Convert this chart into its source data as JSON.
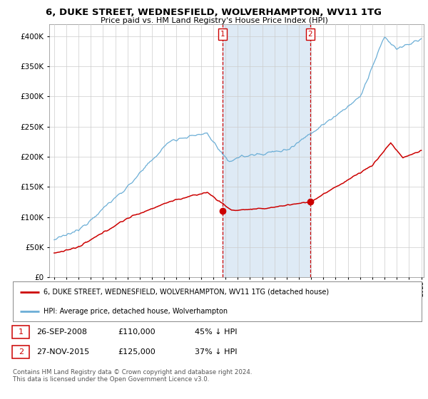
{
  "title": "6, DUKE STREET, WEDNESFIELD, WOLVERHAMPTON, WV11 1TG",
  "subtitle": "Price paid vs. HM Land Registry's House Price Index (HPI)",
  "legend_line1": "6, DUKE STREET, WEDNESFIELD, WOLVERHAMPTON, WV11 1TG (detached house)",
  "legend_line2": "HPI: Average price, detached house, Wolverhampton",
  "annotation1_label": "1",
  "annotation1_date": "26-SEP-2008",
  "annotation1_price": "£110,000",
  "annotation1_pct": "45% ↓ HPI",
  "annotation2_label": "2",
  "annotation2_date": "27-NOV-2015",
  "annotation2_price": "£125,000",
  "annotation2_pct": "37% ↓ HPI",
  "footnote": "Contains HM Land Registry data © Crown copyright and database right 2024.\nThis data is licensed under the Open Government Licence v3.0.",
  "hpi_color": "#6baed6",
  "price_color": "#cc0000",
  "annotation_color": "#cc0000",
  "sale1_x": 2008.75,
  "sale1_y": 110000,
  "sale2_x": 2015.92,
  "sale2_y": 125000,
  "ylim": [
    0,
    420000
  ],
  "xlim": [
    1994.6,
    2025.2
  ],
  "yticks": [
    0,
    50000,
    100000,
    150000,
    200000,
    250000,
    300000,
    350000,
    400000
  ],
  "xticks": [
    1995,
    1996,
    1997,
    1998,
    1999,
    2000,
    2001,
    2002,
    2003,
    2004,
    2005,
    2006,
    2007,
    2008,
    2009,
    2010,
    2011,
    2012,
    2013,
    2014,
    2015,
    2016,
    2017,
    2018,
    2019,
    2020,
    2021,
    2022,
    2023,
    2024,
    2025
  ],
  "background_color": "#ffffff",
  "plot_bg_color": "#ffffff",
  "grid_color": "#cccccc",
  "shade_color": "#deeaf5"
}
